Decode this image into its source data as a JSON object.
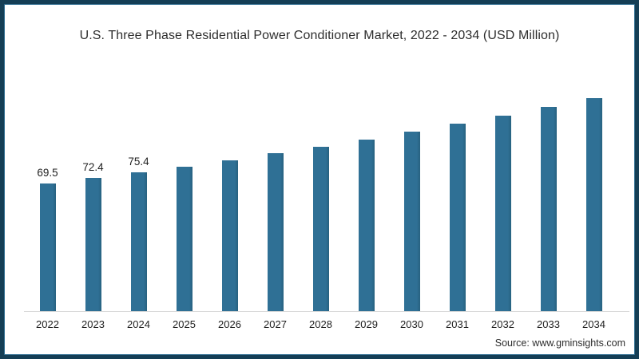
{
  "window": {
    "frame_border_color": "#143e55",
    "frame_inner_line_color": "#2c6b8f",
    "background_color": "#ffffff"
  },
  "chart_data": {
    "type": "bar",
    "title": "U.S. Three Phase Residential Power Conditioner Market, 2022 - 2034 (USD Million)",
    "categories": [
      "2022",
      "2023",
      "2024",
      "2025",
      "2026",
      "2027",
      "2028",
      "2029",
      "2030",
      "2031",
      "2032",
      "2033",
      "2034"
    ],
    "values": [
      69.5,
      72.4,
      75.4,
      78.7,
      82.2,
      85.8,
      89.6,
      93.5,
      97.7,
      102.0,
      106.5,
      111.2,
      116.1
    ],
    "data_labels": [
      "69.5",
      "72.4",
      "75.4",
      "",
      "",
      "",
      "",
      "",
      "",
      "",
      "",
      "",
      ""
    ],
    "xlabel": "",
    "ylabel": "",
    "ylim": [
      0,
      120
    ],
    "grid": false,
    "legend": false,
    "bar_color": "#2f7095",
    "bar_edge_color": "#27617f",
    "axis_line_color": "#d8d8d8",
    "label_text_color": "#1f1f1f",
    "title_color": "#2d2d2d"
  },
  "source": {
    "label": "Source: www.gminsights.com"
  }
}
